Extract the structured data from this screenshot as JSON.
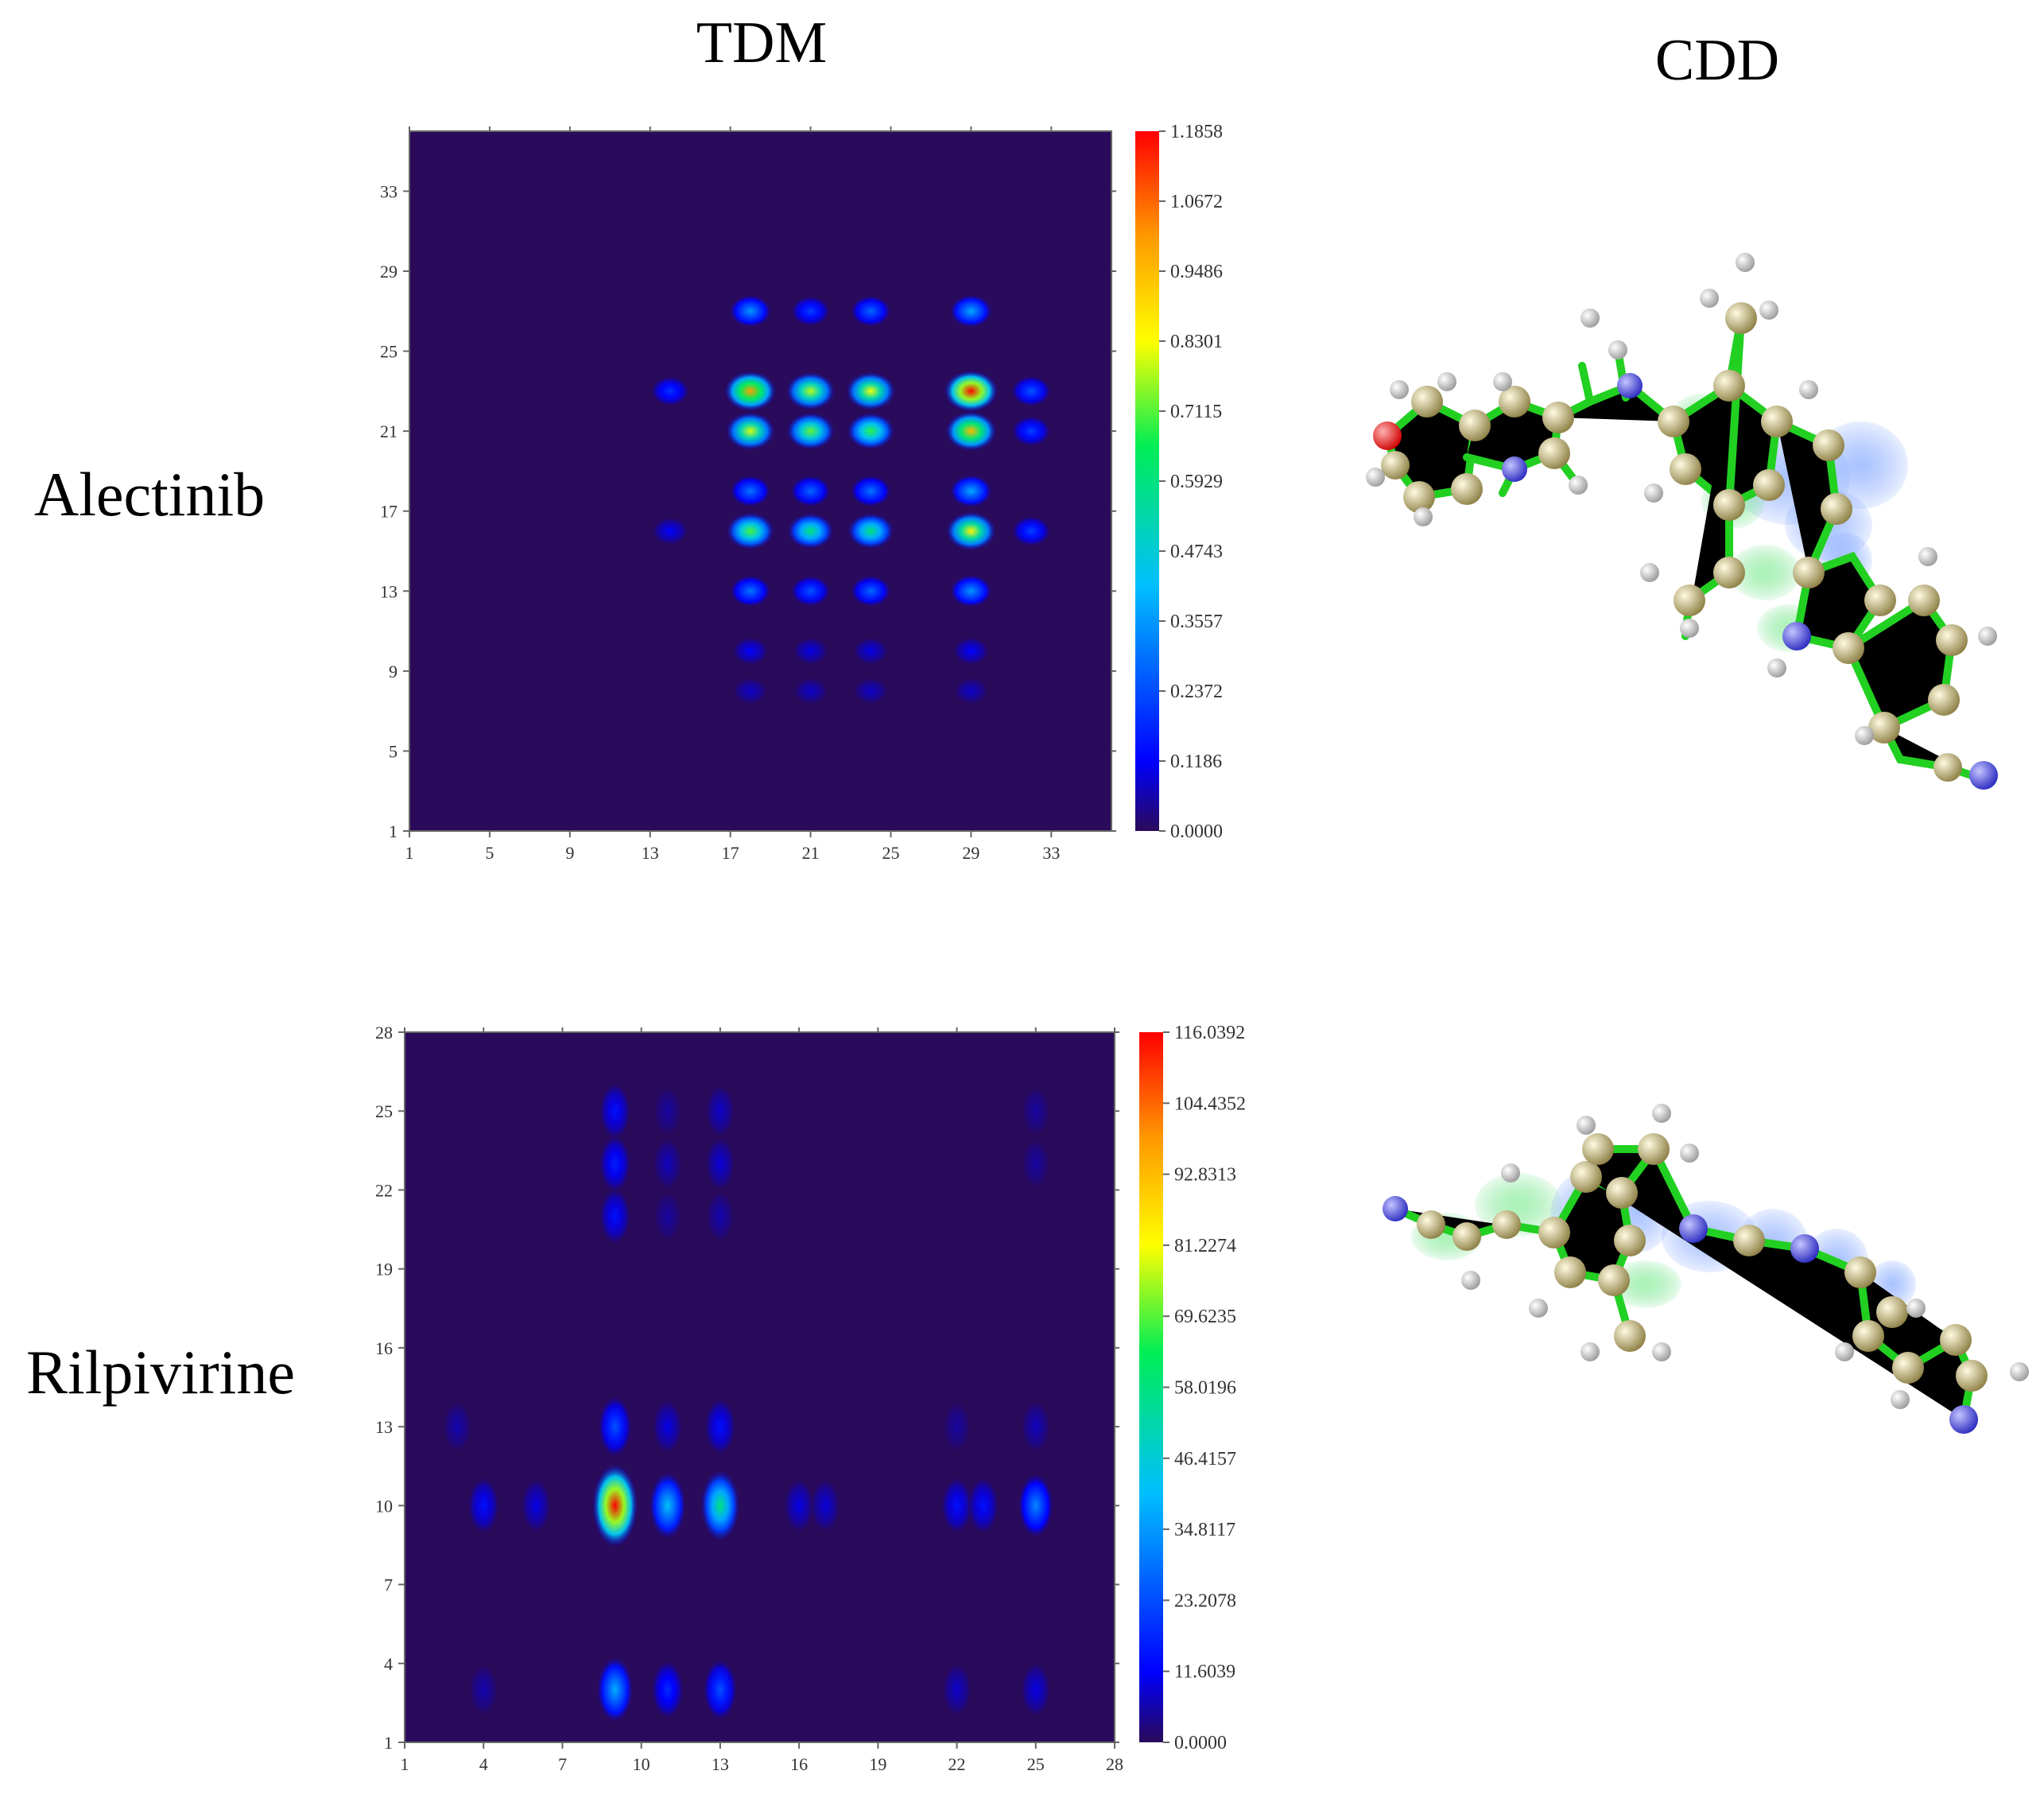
{
  "headers": {
    "tdm": "TDM",
    "cdd": "CDD"
  },
  "colors": {
    "background_low": "#2a0a5a",
    "colormap": [
      "#2a0a5a",
      "#0000ff",
      "#00bfff",
      "#00ee55",
      "#ffff00",
      "#ff9900",
      "#ff0000"
    ]
  },
  "chart_data": [
    {
      "type": "heatmap",
      "label": "Alectinib",
      "title": "TDM",
      "x_ticks": [
        "1",
        "5",
        "9",
        "13",
        "17",
        "21",
        "25",
        "29",
        "33"
      ],
      "y_ticks": [
        "1",
        "5",
        "9",
        "13",
        "17",
        "21",
        "25",
        "29",
        "33"
      ],
      "axis_range": [
        1,
        36
      ],
      "colorbar": {
        "min": 0,
        "max": 1.1858,
        "labels": [
          "0.0000",
          "0.1186",
          "0.2372",
          "0.3557",
          "0.4743",
          "0.5929",
          "0.7115",
          "0.8301",
          "0.9486",
          "1.0672",
          "1.1858"
        ]
      },
      "hotspots": [
        {
          "x": 18,
          "y": 23,
          "value": 1.0
        },
        {
          "x": 21,
          "y": 23,
          "value": 0.78
        },
        {
          "x": 24,
          "y": 23,
          "value": 0.82
        },
        {
          "x": 29,
          "y": 23,
          "value": 1.18
        },
        {
          "x": 32,
          "y": 23,
          "value": 0.25
        },
        {
          "x": 14,
          "y": 23,
          "value": 0.2
        },
        {
          "x": 18,
          "y": 21,
          "value": 0.8
        },
        {
          "x": 21,
          "y": 21,
          "value": 0.72
        },
        {
          "x": 24,
          "y": 21,
          "value": 0.68
        },
        {
          "x": 29,
          "y": 21,
          "value": 0.95
        },
        {
          "x": 32,
          "y": 21,
          "value": 0.22
        },
        {
          "x": 18,
          "y": 18,
          "value": 0.3
        },
        {
          "x": 21,
          "y": 18,
          "value": 0.28
        },
        {
          "x": 24,
          "y": 18,
          "value": 0.3
        },
        {
          "x": 29,
          "y": 18,
          "value": 0.38
        },
        {
          "x": 18,
          "y": 16,
          "value": 0.7
        },
        {
          "x": 21,
          "y": 16,
          "value": 0.6
        },
        {
          "x": 24,
          "y": 16,
          "value": 0.6
        },
        {
          "x": 29,
          "y": 16,
          "value": 0.85
        },
        {
          "x": 32,
          "y": 16,
          "value": 0.22
        },
        {
          "x": 14,
          "y": 16,
          "value": 0.12
        },
        {
          "x": 18,
          "y": 13,
          "value": 0.3
        },
        {
          "x": 21,
          "y": 13,
          "value": 0.25
        },
        {
          "x": 24,
          "y": 13,
          "value": 0.28
        },
        {
          "x": 29,
          "y": 13,
          "value": 0.35
        },
        {
          "x": 18,
          "y": 27,
          "value": 0.35
        },
        {
          "x": 21,
          "y": 27,
          "value": 0.22
        },
        {
          "x": 24,
          "y": 27,
          "value": 0.28
        },
        {
          "x": 29,
          "y": 27,
          "value": 0.38
        },
        {
          "x": 18,
          "y": 10,
          "value": 0.12
        },
        {
          "x": 21,
          "y": 10,
          "value": 0.1
        },
        {
          "x": 24,
          "y": 10,
          "value": 0.1
        },
        {
          "x": 29,
          "y": 10,
          "value": 0.12
        },
        {
          "x": 18,
          "y": 8,
          "value": 0.08
        },
        {
          "x": 21,
          "y": 8,
          "value": 0.08
        },
        {
          "x": 24,
          "y": 8,
          "value": 0.08
        },
        {
          "x": 29,
          "y": 8,
          "value": 0.08
        }
      ]
    },
    {
      "type": "heatmap",
      "label": "Rilpivirine",
      "title": "TDM",
      "x_ticks": [
        "1",
        "4",
        "7",
        "10",
        "13",
        "16",
        "19",
        "22",
        "25",
        "28"
      ],
      "y_ticks": [
        "1",
        "4",
        "7",
        "10",
        "13",
        "16",
        "19",
        "22",
        "25",
        "28"
      ],
      "axis_range": [
        1,
        28
      ],
      "colorbar": {
        "min": 0,
        "max": 116.0392,
        "labels": [
          "0.0000",
          "11.6039",
          "23.2078",
          "34.8117",
          "46.4157",
          "58.0196",
          "69.6235",
          "81.2274",
          "92.8313",
          "104.4352",
          "116.0392"
        ]
      },
      "hotspots": [
        {
          "x": 9,
          "y": 10,
          "value": 116.0
        },
        {
          "x": 11,
          "y": 10,
          "value": 42.0
        },
        {
          "x": 13,
          "y": 10,
          "value": 58.0
        },
        {
          "x": 4,
          "y": 10,
          "value": 14.0
        },
        {
          "x": 6,
          "y": 10,
          "value": 10.0
        },
        {
          "x": 16,
          "y": 10,
          "value": 10.0
        },
        {
          "x": 17,
          "y": 10,
          "value": 9.0
        },
        {
          "x": 22,
          "y": 10,
          "value": 14.0
        },
        {
          "x": 23,
          "y": 10,
          "value": 14.0
        },
        {
          "x": 25,
          "y": 10,
          "value": 32.0
        },
        {
          "x": 9,
          "y": 3,
          "value": 38.0
        },
        {
          "x": 11,
          "y": 3,
          "value": 18.0
        },
        {
          "x": 13,
          "y": 3,
          "value": 24.0
        },
        {
          "x": 4,
          "y": 3,
          "value": 6.0
        },
        {
          "x": 22,
          "y": 3,
          "value": 8.0
        },
        {
          "x": 25,
          "y": 3,
          "value": 10.0
        },
        {
          "x": 9,
          "y": 13,
          "value": 24.0
        },
        {
          "x": 11,
          "y": 13,
          "value": 10.0
        },
        {
          "x": 13,
          "y": 13,
          "value": 14.0
        },
        {
          "x": 3,
          "y": 13,
          "value": 6.0
        },
        {
          "x": 25,
          "y": 13,
          "value": 7.0
        },
        {
          "x": 22,
          "y": 13,
          "value": 5.0
        },
        {
          "x": 9,
          "y": 21,
          "value": 14.0
        },
        {
          "x": 9,
          "y": 23,
          "value": 16.0
        },
        {
          "x": 9,
          "y": 25,
          "value": 14.0
        },
        {
          "x": 11,
          "y": 23,
          "value": 7.0
        },
        {
          "x": 13,
          "y": 23,
          "value": 9.0
        },
        {
          "x": 13,
          "y": 25,
          "value": 8.0
        },
        {
          "x": 11,
          "y": 25,
          "value": 5.0
        },
        {
          "x": 11,
          "y": 21,
          "value": 5.0
        },
        {
          "x": 13,
          "y": 21,
          "value": 6.0
        },
        {
          "x": 25,
          "y": 23,
          "value": 5.0
        },
        {
          "x": 25,
          "y": 25,
          "value": 5.0
        }
      ]
    }
  ]
}
